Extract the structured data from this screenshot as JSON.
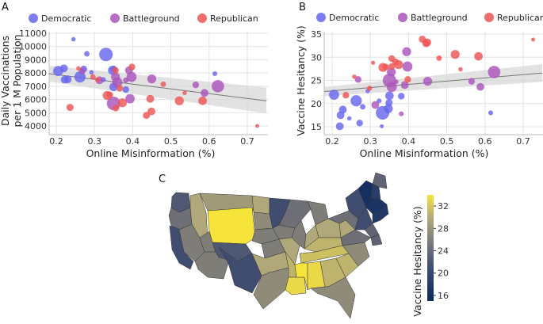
{
  "colors": {
    "Democratic": "#6666ee",
    "Battleground": "#aa55bb",
    "Republican": "#ee5555",
    "grid": "#e3e3e3",
    "ci": "#d5d5d5",
    "trend": "#777777"
  },
  "chart_data": [
    {
      "panel": "A",
      "type": "scatter",
      "title": "",
      "xlabel": "Online Misinformation (%)",
      "ylabel": "Daily Vaccinations per 1 M Population",
      "ylabel_lines": [
        "Daily Vaccinations",
        "per 1 M Population"
      ],
      "xlim": [
        0.18,
        0.75
      ],
      "ylim": [
        3500,
        11200
      ],
      "xticks": [
        0.2,
        0.3,
        0.4,
        0.5,
        0.6,
        0.7
      ],
      "xtick_labels": [
        "0.2",
        "0.3",
        "0.4",
        "0.5",
        "0.6",
        "0.7"
      ],
      "yticks": [
        4000,
        5000,
        6000,
        7000,
        8000,
        9000,
        10000,
        11000
      ],
      "ytick_labels": [
        "4000",
        "5000",
        "6000",
        "7000",
        "8000",
        "9000",
        "10000",
        "11000"
      ],
      "grid": true,
      "legend": {
        "placement": "top",
        "entries": [
          "Democratic",
          "Battleground",
          "Republican"
        ]
      },
      "trend": {
        "x": [
          0.18,
          0.75
        ],
        "y": [
          7950,
          5900
        ],
        "ci_low": [
          7350,
          4950
        ],
        "ci_high": [
          8550,
          6900
        ]
      },
      "points": [
        {
          "x": 0.245,
          "y": 10550,
          "s": 1,
          "g": "Democratic"
        },
        {
          "x": 0.28,
          "y": 9450,
          "s": 1.5,
          "g": "Democratic"
        },
        {
          "x": 0.33,
          "y": 9400,
          "s": 5,
          "g": "Democratic"
        },
        {
          "x": 0.205,
          "y": 8150,
          "s": 3.5,
          "g": "Democratic"
        },
        {
          "x": 0.22,
          "y": 8350,
          "s": 2.5,
          "g": "Democratic"
        },
        {
          "x": 0.222,
          "y": 7500,
          "s": 2.5,
          "g": "Democratic"
        },
        {
          "x": 0.23,
          "y": 7520,
          "s": 2.5,
          "g": "Democratic"
        },
        {
          "x": 0.262,
          "y": 7700,
          "s": 4,
          "g": "Democratic"
        },
        {
          "x": 0.272,
          "y": 8300,
          "s": 2,
          "g": "Democratic"
        },
        {
          "x": 0.292,
          "y": 8050,
          "s": 1,
          "g": "Democratic"
        },
        {
          "x": 0.323,
          "y": 7500,
          "s": 1.3,
          "g": "Democratic"
        },
        {
          "x": 0.347,
          "y": 8200,
          "s": 3,
          "g": "Democratic"
        },
        {
          "x": 0.35,
          "y": 8300,
          "s": 2,
          "g": "Democratic"
        },
        {
          "x": 0.35,
          "y": 6950,
          "s": 2.8,
          "g": "Democratic"
        },
        {
          "x": 0.382,
          "y": 6750,
          "s": 2,
          "g": "Democratic"
        },
        {
          "x": 0.615,
          "y": 7950,
          "s": 1.2,
          "g": "Democratic"
        },
        {
          "x": 0.268,
          "y": 8150,
          "s": 2,
          "g": "Battleground"
        },
        {
          "x": 0.313,
          "y": 7450,
          "s": 2.5,
          "g": "Battleground"
        },
        {
          "x": 0.355,
          "y": 7700,
          "s": 3,
          "g": "Battleground"
        },
        {
          "x": 0.36,
          "y": 7300,
          "s": 3.5,
          "g": "Battleground"
        },
        {
          "x": 0.35,
          "y": 5700,
          "s": 5,
          "g": "Battleground"
        },
        {
          "x": 0.39,
          "y": 8200,
          "s": 2.5,
          "g": "Battleground"
        },
        {
          "x": 0.397,
          "y": 7700,
          "s": 3.5,
          "g": "Battleground"
        },
        {
          "x": 0.382,
          "y": 7450,
          "s": 1.5,
          "g": "Battleground"
        },
        {
          "x": 0.393,
          "y": 6050,
          "s": 3.2,
          "g": "Battleground"
        },
        {
          "x": 0.45,
          "y": 7550,
          "s": 3,
          "g": "Battleground"
        },
        {
          "x": 0.565,
          "y": 7100,
          "s": 2,
          "g": "Battleground"
        },
        {
          "x": 0.588,
          "y": 6500,
          "s": 2.5,
          "g": "Battleground"
        },
        {
          "x": 0.623,
          "y": 7000,
          "s": 4.5,
          "g": "Battleground"
        },
        {
          "x": 0.258,
          "y": 8350,
          "s": 1,
          "g": "Republican"
        },
        {
          "x": 0.296,
          "y": 7700,
          "s": 1.5,
          "g": "Republican"
        },
        {
          "x": 0.308,
          "y": 7500,
          "s": 1.3,
          "g": "Republican"
        },
        {
          "x": 0.355,
          "y": 8200,
          "s": 2,
          "g": "Republican"
        },
        {
          "x": 0.398,
          "y": 8450,
          "s": 2,
          "g": "Republican"
        },
        {
          "x": 0.366,
          "y": 6850,
          "s": 2,
          "g": "Republican"
        },
        {
          "x": 0.333,
          "y": 6300,
          "s": 3,
          "g": "Republican"
        },
        {
          "x": 0.34,
          "y": 6350,
          "s": 2,
          "g": "Republican"
        },
        {
          "x": 0.236,
          "y": 5400,
          "s": 2.2,
          "g": "Republican"
        },
        {
          "x": 0.356,
          "y": 5350,
          "s": 2,
          "g": "Republican"
        },
        {
          "x": 0.373,
          "y": 5750,
          "s": 3,
          "g": "Republican"
        },
        {
          "x": 0.446,
          "y": 6050,
          "s": 2.5,
          "g": "Republican"
        },
        {
          "x": 0.449,
          "y": 5100,
          "s": 2.5,
          "g": "Republican"
        },
        {
          "x": 0.436,
          "y": 4800,
          "s": 2.2,
          "g": "Republican"
        },
        {
          "x": 0.48,
          "y": 7150,
          "s": 1.5,
          "g": "Republican"
        },
        {
          "x": 0.536,
          "y": 6500,
          "s": 1,
          "g": "Republican"
        },
        {
          "x": 0.522,
          "y": 5900,
          "s": 3,
          "g": "Republican"
        },
        {
          "x": 0.583,
          "y": 5900,
          "s": 2.8,
          "g": "Republican"
        },
        {
          "x": 0.726,
          "y": 4000,
          "s": 0.8,
          "g": "Republican"
        }
      ]
    },
    {
      "panel": "B",
      "type": "scatter",
      "title": "",
      "xlabel": "Online Misinformation (%)",
      "ylabel": "Vaccine Hesitancy (%)",
      "xlim": [
        0.18,
        0.75
      ],
      "ylim": [
        13,
        36
      ],
      "xticks": [
        0.2,
        0.3,
        0.4,
        0.5,
        0.6,
        0.7
      ],
      "xtick_labels": [
        "0.2",
        "0.3",
        "0.4",
        "0.5",
        "0.6",
        "0.7"
      ],
      "yticks": [
        15,
        20,
        25,
        30,
        35
      ],
      "ytick_labels": [
        "15",
        "20",
        "25",
        "30",
        "35"
      ],
      "grid": true,
      "legend": {
        "placement": "top",
        "entries": [
          "Democratic",
          "Battleground",
          "Republican"
        ]
      },
      "trend": {
        "x": [
          0.18,
          0.75
        ],
        "y": [
          22.6,
          26.6
        ],
        "ci_low": [
          21.6,
          24.7
        ],
        "ci_high": [
          23.6,
          28.5
        ]
      },
      "points": [
        {
          "x": 0.205,
          "y": 21.9,
          "s": 3.5,
          "g": "Democratic"
        },
        {
          "x": 0.263,
          "y": 20.6,
          "s": 4,
          "g": "Democratic"
        },
        {
          "x": 0.228,
          "y": 18.7,
          "s": 2.5,
          "g": "Democratic"
        },
        {
          "x": 0.222,
          "y": 17.5,
          "s": 2.5,
          "g": "Democratic"
        },
        {
          "x": 0.22,
          "y": 15.1,
          "s": 2.5,
          "g": "Democratic"
        },
        {
          "x": 0.245,
          "y": 16.8,
          "s": 1,
          "g": "Democratic"
        },
        {
          "x": 0.272,
          "y": 15.8,
          "s": 2,
          "g": "Democratic"
        },
        {
          "x": 0.28,
          "y": 19.3,
          "s": 1.5,
          "g": "Democratic"
        },
        {
          "x": 0.293,
          "y": 22.7,
          "s": 1,
          "g": "Democratic"
        },
        {
          "x": 0.323,
          "y": 20.6,
          "s": 1.2,
          "g": "Democratic"
        },
        {
          "x": 0.332,
          "y": 18,
          "s": 5,
          "g": "Democratic"
        },
        {
          "x": 0.35,
          "y": 21.7,
          "s": 2.8,
          "g": "Democratic"
        },
        {
          "x": 0.349,
          "y": 20.2,
          "s": 2.2,
          "g": "Democratic"
        },
        {
          "x": 0.347,
          "y": 18.9,
          "s": 3,
          "g": "Democratic"
        },
        {
          "x": 0.33,
          "y": 15.1,
          "s": 0.8,
          "g": "Democratic"
        },
        {
          "x": 0.381,
          "y": 21.6,
          "s": 2,
          "g": "Democratic"
        },
        {
          "x": 0.615,
          "y": 18,
          "s": 1.2,
          "g": "Democratic"
        },
        {
          "x": 0.268,
          "y": 25.2,
          "s": 2,
          "g": "Battleground"
        },
        {
          "x": 0.313,
          "y": 19.7,
          "s": 2.5,
          "g": "Battleground"
        },
        {
          "x": 0.35,
          "y": 25,
          "s": 5,
          "g": "Battleground"
        },
        {
          "x": 0.356,
          "y": 23.6,
          "s": 3.5,
          "g": "Battleground"
        },
        {
          "x": 0.355,
          "y": 26.8,
          "s": 3,
          "g": "Battleground"
        },
        {
          "x": 0.368,
          "y": 24.7,
          "s": 1,
          "g": "Battleground"
        },
        {
          "x": 0.39,
          "y": 24,
          "s": 2.5,
          "g": "Battleground"
        },
        {
          "x": 0.395,
          "y": 31.2,
          "s": 3,
          "g": "Battleground"
        },
        {
          "x": 0.397,
          "y": 28,
          "s": 3.5,
          "g": "Battleground"
        },
        {
          "x": 0.381,
          "y": 17.8,
          "s": 1.2,
          "g": "Battleground"
        },
        {
          "x": 0.45,
          "y": 24.8,
          "s": 3,
          "g": "Battleground"
        },
        {
          "x": 0.565,
          "y": 24.8,
          "s": 2,
          "g": "Battleground"
        },
        {
          "x": 0.588,
          "y": 23.6,
          "s": 2.5,
          "g": "Battleground"
        },
        {
          "x": 0.624,
          "y": 26.8,
          "s": 4.5,
          "g": "Battleground"
        },
        {
          "x": 0.236,
          "y": 21.8,
          "s": 2,
          "g": "Republican"
        },
        {
          "x": 0.258,
          "y": 25.8,
          "s": 1,
          "g": "Republican"
        },
        {
          "x": 0.298,
          "y": 23.3,
          "s": 1.3,
          "g": "Republican"
        },
        {
          "x": 0.307,
          "y": 28.8,
          "s": 0.9,
          "g": "Republican"
        },
        {
          "x": 0.333,
          "y": 27.8,
          "s": 3,
          "g": "Republican"
        },
        {
          "x": 0.34,
          "y": 27.9,
          "s": 2,
          "g": "Republican"
        },
        {
          "x": 0.356,
          "y": 29.7,
          "s": 2,
          "g": "Republican"
        },
        {
          "x": 0.356,
          "y": 28,
          "s": 2,
          "g": "Republican"
        },
        {
          "x": 0.366,
          "y": 29,
          "s": 2,
          "g": "Republican"
        },
        {
          "x": 0.374,
          "y": 28.4,
          "s": 3,
          "g": "Republican"
        },
        {
          "x": 0.398,
          "y": 25.2,
          "s": 2,
          "g": "Republican"
        },
        {
          "x": 0.436,
          "y": 33.9,
          "s": 2.2,
          "g": "Republican"
        },
        {
          "x": 0.446,
          "y": 33,
          "s": 2.5,
          "g": "Republican"
        },
        {
          "x": 0.449,
          "y": 33.2,
          "s": 2.5,
          "g": "Republican"
        },
        {
          "x": 0.48,
          "y": 29.8,
          "s": 1.5,
          "g": "Republican"
        },
        {
          "x": 0.522,
          "y": 30.6,
          "s": 3,
          "g": "Republican"
        },
        {
          "x": 0.536,
          "y": 27.4,
          "s": 1,
          "g": "Republican"
        },
        {
          "x": 0.583,
          "y": 30.2,
          "s": 2.8,
          "g": "Republican"
        },
        {
          "x": 0.726,
          "y": 33.8,
          "s": 0.8,
          "g": "Republican"
        }
      ]
    },
    {
      "panel": "C",
      "type": "heatmap",
      "title": "",
      "description": "Cartogram of US states colored by vaccine hesitancy",
      "colorbar": {
        "label": "Vaccine Hesitancy (%)",
        "ticks": [
          16,
          20,
          24,
          28,
          32
        ],
        "tick_labels": [
          "16",
          "20",
          "24",
          "28",
          "32"
        ],
        "range": [
          15,
          34
        ]
      },
      "regions": [
        {
          "name": "WA",
          "value": 22
        },
        {
          "name": "OR",
          "value": 24
        },
        {
          "name": "CA",
          "value": 21
        },
        {
          "name": "NV",
          "value": 25
        },
        {
          "name": "AZ",
          "value": 25
        },
        {
          "name": "ID",
          "value": 28
        },
        {
          "name": "MT",
          "value": 27
        },
        {
          "name": "WY",
          "value": 33
        },
        {
          "name": "UT",
          "value": 25
        },
        {
          "name": "CO",
          "value": 22
        },
        {
          "name": "NM",
          "value": 21
        },
        {
          "name": "ND",
          "value": 28
        },
        {
          "name": "SD",
          "value": 26
        },
        {
          "name": "NE",
          "value": 25
        },
        {
          "name": "KS",
          "value": 25
        },
        {
          "name": "OK",
          "value": 28
        },
        {
          "name": "TX",
          "value": 26
        },
        {
          "name": "MN",
          "value": 21
        },
        {
          "name": "IA",
          "value": 25
        },
        {
          "name": "MO",
          "value": 28
        },
        {
          "name": "AR",
          "value": 29
        },
        {
          "name": "LA",
          "value": 32
        },
        {
          "name": "WI",
          "value": 24
        },
        {
          "name": "IL",
          "value": 25
        },
        {
          "name": "MI",
          "value": 25
        },
        {
          "name": "IN",
          "value": 28
        },
        {
          "name": "OH",
          "value": 28
        },
        {
          "name": "KY",
          "value": 29
        },
        {
          "name": "TN",
          "value": 30
        },
        {
          "name": "MS",
          "value": 33
        },
        {
          "name": "AL",
          "value": 32
        },
        {
          "name": "GA",
          "value": 29
        },
        {
          "name": "FL",
          "value": 26
        },
        {
          "name": "SC",
          "value": 29
        },
        {
          "name": "NC",
          "value": 26
        },
        {
          "name": "VA",
          "value": 24
        },
        {
          "name": "WV",
          "value": 28
        },
        {
          "name": "PA",
          "value": 24
        },
        {
          "name": "NY",
          "value": 21
        },
        {
          "name": "NJ",
          "value": 21
        },
        {
          "name": "VT",
          "value": 16
        },
        {
          "name": "NH",
          "value": 19
        },
        {
          "name": "ME",
          "value": 23
        },
        {
          "name": "MA",
          "value": 17
        },
        {
          "name": "CT",
          "value": 18
        },
        {
          "name": "RI",
          "value": 18
        },
        {
          "name": "MD",
          "value": 23
        },
        {
          "name": "DE",
          "value": 23
        }
      ]
    }
  ]
}
